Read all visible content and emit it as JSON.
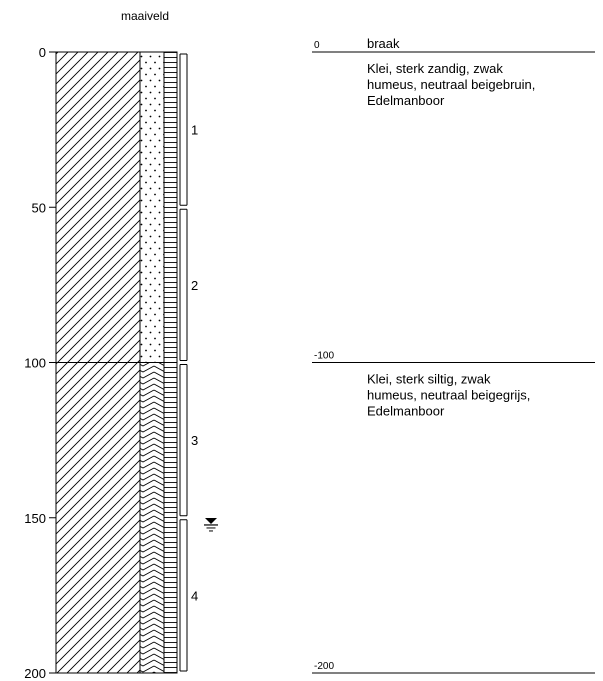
{
  "header": {
    "surface_label": "maaiveld"
  },
  "depth_axis": {
    "min": 0,
    "max": 200,
    "ticks": [
      "0",
      "50",
      "100",
      "150",
      "200"
    ]
  },
  "layers": [
    {
      "top": 0,
      "bottom": 100,
      "top_label": "0",
      "name": "braak",
      "description": [
        "Klei, sterk zandig, zwak",
        "humeus, neutraal beigebruin,",
        "Edelmanboor"
      ],
      "texture": "sand-dots"
    },
    {
      "top": 100,
      "bottom": 200,
      "top_label": "-100",
      "name": "",
      "description": [
        "Klei, sterk siltig, zwak",
        "humeus, neutraal beigegrijs,",
        "Edelmanboor"
      ],
      "texture": "silt-zigzag"
    }
  ],
  "bottom_label": "-200",
  "samples": [
    {
      "label": "1",
      "top": 0,
      "bottom": 50
    },
    {
      "label": "2",
      "top": 50,
      "bottom": 100
    },
    {
      "label": "3",
      "top": 100,
      "bottom": 150
    },
    {
      "label": "4",
      "top": 150,
      "bottom": 200
    }
  ],
  "groundwater": {
    "depth": 152,
    "icon": "groundwater-level-icon"
  },
  "colors": {
    "line": "#000000",
    "background": "#ffffff"
  }
}
